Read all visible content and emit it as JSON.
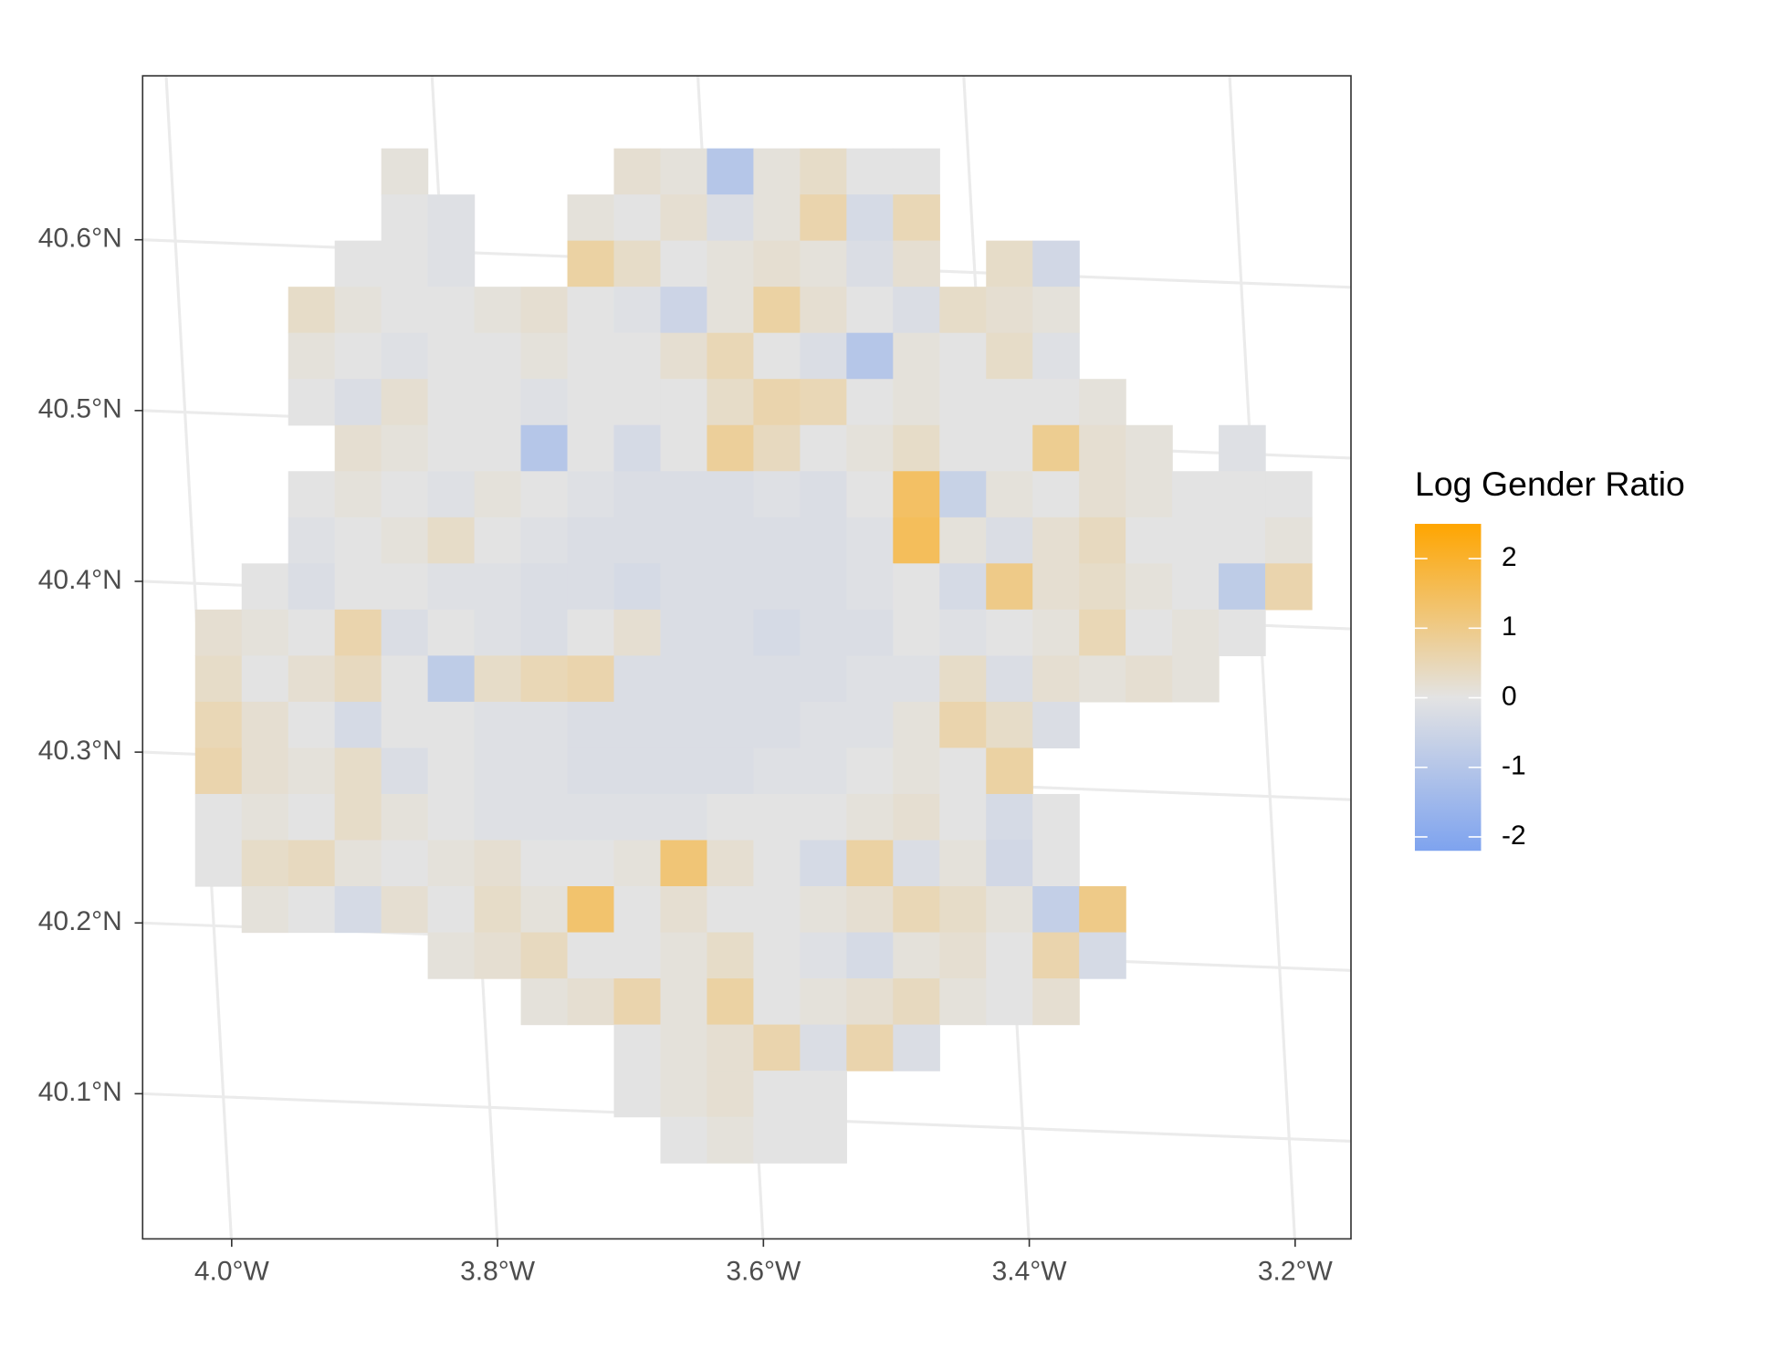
{
  "chart_data": {
    "type": "raster",
    "x": [
      -4.01,
      -3.975,
      -3.94,
      -3.905,
      -3.87,
      -3.835,
      -3.8,
      -3.765,
      -3.73,
      -3.695,
      -3.66,
      -3.625,
      -3.59,
      -3.555,
      -3.52,
      -3.485,
      -3.45,
      -3.415,
      -3.38,
      -3.345,
      -3.31,
      -3.275,
      -3.24,
      -3.205
    ],
    "y": [
      40.64,
      40.613,
      40.586,
      40.559,
      40.532,
      40.505,
      40.478,
      40.451,
      40.424,
      40.397,
      40.37,
      40.343,
      40.316,
      40.289,
      40.262,
      40.235,
      40.208,
      40.181,
      40.154,
      40.127,
      40.1,
      40.073
    ],
    "values": [
      [
        null,
        null,
        null,
        null,
        0.1,
        null,
        null,
        null,
        null,
        0.2,
        0.1,
        -1.0,
        0.1,
        0.3,
        0,
        0,
        null,
        null,
        null,
        null,
        null,
        null,
        null,
        null
      ],
      [
        null,
        null,
        null,
        null,
        0,
        -0.1,
        null,
        null,
        0.1,
        0,
        0.2,
        -0.2,
        0.1,
        0.6,
        -0.3,
        0.5,
        null,
        null,
        null,
        null,
        null,
        null,
        null,
        null
      ],
      [
        null,
        null,
        null,
        0,
        0,
        -0.1,
        null,
        null,
        0.7,
        0.3,
        0,
        0.1,
        0.2,
        0.1,
        -0.2,
        0.2,
        null,
        0.3,
        -0.4,
        null,
        null,
        null,
        null,
        null
      ],
      [
        null,
        null,
        0.3,
        0.1,
        0,
        0,
        0.1,
        0.2,
        0,
        -0.1,
        -0.5,
        0.1,
        0.7,
        0.2,
        0,
        -0.2,
        0.3,
        0.2,
        0.1,
        null,
        null,
        null,
        null,
        null
      ],
      [
        null,
        null,
        0.1,
        0,
        -0.1,
        0,
        0,
        0.1,
        0,
        0,
        0.2,
        0.5,
        0,
        -0.2,
        -1.0,
        0.1,
        0,
        0.3,
        -0.1,
        null,
        null,
        null,
        null,
        null
      ],
      [
        null,
        null,
        0,
        -0.2,
        0.2,
        0,
        0,
        -0.1,
        0,
        0,
        0,
        0.3,
        0.6,
        0.5,
        0,
        0.1,
        0,
        0,
        0,
        0.1,
        null,
        null,
        null,
        null
      ],
      [
        null,
        null,
        null,
        0.2,
        0.1,
        0,
        0,
        -1.0,
        0,
        -0.3,
        0,
        0.8,
        0.4,
        0,
        0.1,
        0.3,
        0,
        0,
        0.9,
        0.2,
        0.1,
        null,
        -0.1,
        null
      ],
      [
        null,
        null,
        0,
        0.1,
        0,
        -0.1,
        0.1,
        0,
        -0.1,
        -0.2,
        -0.2,
        -0.2,
        -0.1,
        -0.2,
        0,
        1.4,
        -0.6,
        0.1,
        0,
        0.2,
        0.1,
        0,
        0,
        0
      ],
      [
        null,
        null,
        -0.1,
        0,
        0.1,
        0.3,
        0,
        -0.1,
        -0.2,
        -0.2,
        -0.2,
        -0.2,
        -0.2,
        -0.2,
        -0.1,
        1.5,
        0.1,
        -0.2,
        0.2,
        0.4,
        0,
        0,
        0,
        0.1
      ],
      [
        null,
        0,
        -0.2,
        0,
        0,
        -0.1,
        -0.1,
        -0.2,
        -0.2,
        -0.3,
        -0.2,
        -0.2,
        -0.2,
        -0.2,
        -0.1,
        0,
        -0.3,
        1.0,
        0.2,
        0.3,
        0.1,
        0,
        -0.8,
        0.6
      ],
      [
        0.2,
        0.1,
        0,
        0.6,
        -0.2,
        0,
        -0.1,
        -0.2,
        0,
        0.2,
        -0.2,
        -0.2,
        -0.3,
        -0.2,
        -0.2,
        0,
        -0.1,
        0,
        0.1,
        0.5,
        0,
        0.1,
        0,
        null
      ],
      [
        0.3,
        0,
        0.2,
        0.4,
        0,
        -0.8,
        0.3,
        0.5,
        0.6,
        -0.2,
        -0.2,
        -0.2,
        -0.2,
        -0.2,
        -0.1,
        -0.1,
        0.3,
        -0.2,
        0.2,
        0.1,
        0.2,
        0.1,
        null,
        null
      ],
      [
        0.5,
        0.2,
        0,
        -0.3,
        0,
        0,
        -0.1,
        -0.1,
        -0.2,
        -0.2,
        -0.2,
        -0.2,
        -0.2,
        -0.1,
        -0.1,
        0.1,
        0.6,
        0.3,
        -0.2,
        null,
        null,
        null,
        null,
        null
      ],
      [
        0.6,
        0.2,
        0.1,
        0.3,
        -0.2,
        0,
        -0.1,
        -0.1,
        -0.2,
        -0.2,
        -0.2,
        -0.2,
        -0.1,
        -0.1,
        0,
        0.1,
        0,
        0.7,
        null,
        null,
        null,
        null,
        null,
        null
      ],
      [
        0,
        0.1,
        0,
        0.3,
        0.1,
        0,
        -0.1,
        -0.1,
        -0.1,
        -0.1,
        -0.1,
        0,
        0,
        0,
        0.1,
        0.2,
        0,
        -0.3,
        0,
        null,
        null,
        null,
        null,
        null
      ],
      [
        0,
        0.3,
        0.4,
        0.1,
        0,
        0.1,
        0.2,
        0,
        0,
        0.1,
        1.2,
        0.2,
        0,
        -0.3,
        0.7,
        -0.2,
        0.1,
        -0.4,
        0,
        null,
        null,
        null,
        null,
        null
      ],
      [
        null,
        0.1,
        0,
        -0.3,
        0.2,
        0,
        0.3,
        0.1,
        1.3,
        0,
        0.2,
        0,
        0,
        0.1,
        0.2,
        0.5,
        0.3,
        0.1,
        -0.7,
        1.0,
        null,
        null,
        null,
        null
      ],
      [
        null,
        null,
        null,
        null,
        null,
        0.1,
        0.2,
        0.4,
        0,
        0,
        0.1,
        0.3,
        0,
        -0.1,
        -0.3,
        0.1,
        0.2,
        0,
        0.6,
        -0.3,
        null,
        null,
        null,
        null
      ],
      [
        null,
        null,
        null,
        null,
        null,
        null,
        null,
        0.1,
        0.2,
        0.6,
        0.1,
        0.7,
        0,
        0.1,
        0.2,
        0.4,
        0.1,
        0,
        0.2,
        null,
        null,
        null,
        null,
        null
      ],
      [
        null,
        null,
        null,
        null,
        null,
        null,
        null,
        null,
        null,
        0,
        0.1,
        0.2,
        0.6,
        -0.2,
        0.6,
        -0.2,
        null,
        null,
        null,
        null,
        null,
        null,
        null,
        null
      ],
      [
        null,
        null,
        null,
        null,
        null,
        null,
        null,
        null,
        null,
        0,
        0.1,
        0.2,
        0,
        0,
        null,
        null,
        null,
        null,
        null,
        null,
        null,
        null,
        null,
        null
      ],
      [
        null,
        null,
        null,
        null,
        null,
        null,
        null,
        null,
        null,
        null,
        0,
        0.1,
        0,
        0,
        null,
        null,
        null,
        null,
        null,
        null,
        null,
        null,
        null,
        null
      ]
    ],
    "xlim": [
      -4.067,
      -3.158
    ],
    "ylim": [
      40.015,
      40.696
    ],
    "xticks": [
      {
        "value": -4.0,
        "label": "4.0°W"
      },
      {
        "value": -3.8,
        "label": "3.8°W"
      },
      {
        "value": -3.6,
        "label": "3.6°W"
      },
      {
        "value": -3.4,
        "label": "3.4°W"
      },
      {
        "value": -3.2,
        "label": "3.2°W"
      }
    ],
    "yticks": [
      {
        "value": 40.1,
        "label": "40.1°N"
      },
      {
        "value": 40.2,
        "label": "40.2°N"
      },
      {
        "value": 40.3,
        "label": "40.3°N"
      },
      {
        "value": 40.4,
        "label": "40.4°N"
      },
      {
        "value": 40.5,
        "label": "40.5°N"
      },
      {
        "value": 40.6,
        "label": "40.6°N"
      }
    ],
    "grid": true,
    "legend": {
      "title": "Log Gender Ratio",
      "position": "right",
      "lim": [
        -2.2,
        2.5
      ],
      "ticks": [
        -2,
        -1,
        0,
        1,
        2
      ],
      "colors": [
        "#7ea3ef",
        "#e3e3e3",
        "#ffa500"
      ]
    }
  }
}
